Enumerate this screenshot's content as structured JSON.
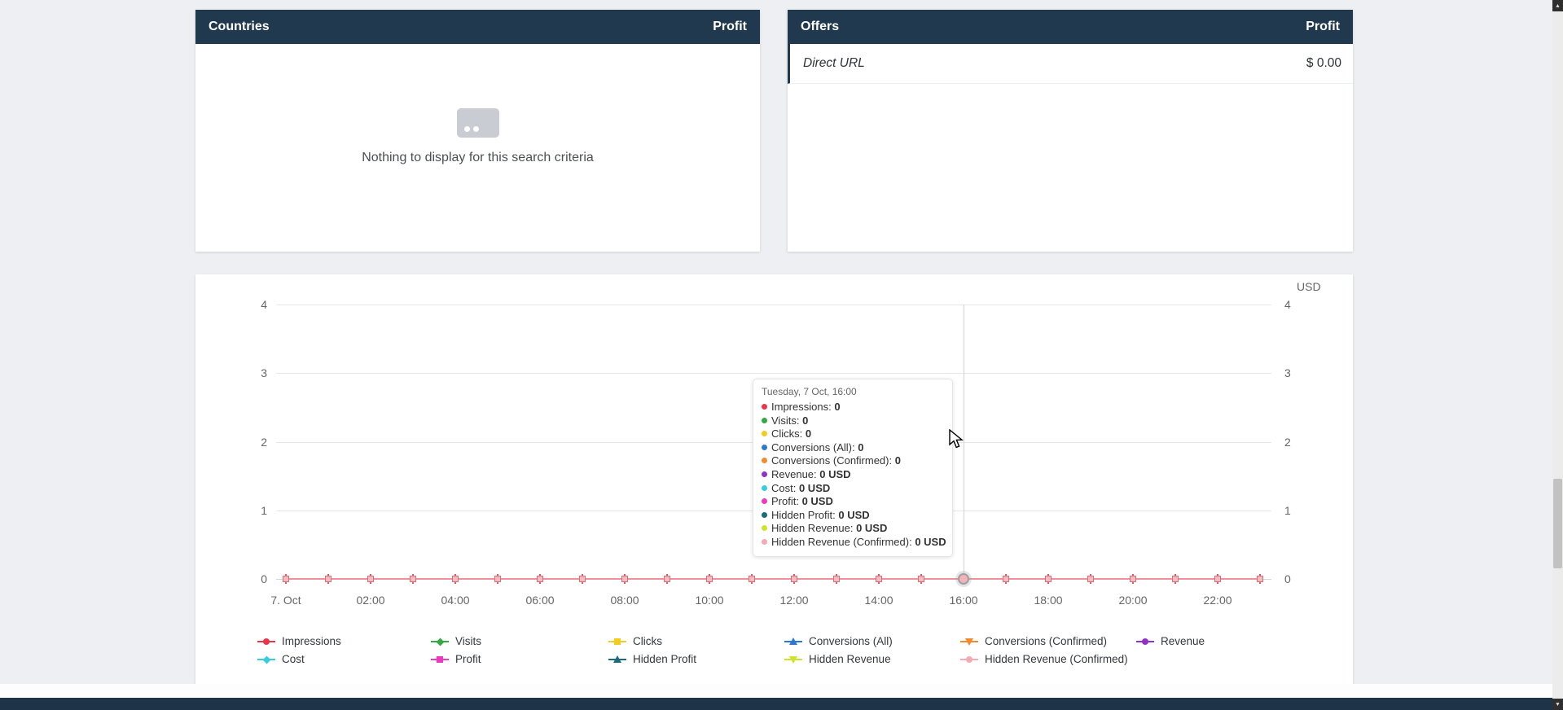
{
  "panels": {
    "countries": {
      "title": "Countries",
      "metric": "Profit",
      "empty_text": "Nothing to display for this search criteria"
    },
    "offers": {
      "title": "Offers",
      "metric": "Profit",
      "rows": [
        {
          "label": "Direct URL",
          "value": "$ 0.00"
        }
      ]
    }
  },
  "chart_data": {
    "type": "line",
    "title": "",
    "x": [
      "00:00",
      "01:00",
      "02:00",
      "03:00",
      "04:00",
      "05:00",
      "06:00",
      "07:00",
      "08:00",
      "09:00",
      "10:00",
      "11:00",
      "12:00",
      "13:00",
      "14:00",
      "15:00",
      "16:00",
      "17:00",
      "18:00",
      "19:00",
      "20:00",
      "21:00",
      "22:00",
      "23:00"
    ],
    "x_tick_labels": [
      "7. Oct",
      "02:00",
      "04:00",
      "06:00",
      "08:00",
      "10:00",
      "12:00",
      "14:00",
      "16:00",
      "18:00",
      "20:00",
      "22:00"
    ],
    "y_ticks": [
      0,
      1,
      2,
      3,
      4
    ],
    "ylim": [
      0,
      4
    ],
    "right_axis_unit": "USD",
    "grid": true,
    "legend_position": "bottom",
    "hovered_point": {
      "x": "16:00",
      "date": "Tuesday, 7 Oct"
    },
    "series": [
      {
        "name": "Impressions",
        "color": "#e8374d",
        "marker": "circle",
        "values": [
          0,
          0,
          0,
          0,
          0,
          0,
          0,
          0,
          0,
          0,
          0,
          0,
          0,
          0,
          0,
          0,
          0,
          0,
          0,
          0,
          0,
          0,
          0,
          0
        ]
      },
      {
        "name": "Visits",
        "color": "#35a843",
        "marker": "diamond",
        "values": [
          0,
          0,
          0,
          0,
          0,
          0,
          0,
          0,
          0,
          0,
          0,
          0,
          0,
          0,
          0,
          0,
          0,
          0,
          0,
          0,
          0,
          0,
          0,
          0
        ]
      },
      {
        "name": "Clicks",
        "color": "#f2cd1f",
        "marker": "square",
        "values": [
          0,
          0,
          0,
          0,
          0,
          0,
          0,
          0,
          0,
          0,
          0,
          0,
          0,
          0,
          0,
          0,
          0,
          0,
          0,
          0,
          0,
          0,
          0,
          0
        ]
      },
      {
        "name": "Conversions (All)",
        "color": "#2d78d2",
        "marker": "triangle-up",
        "values": [
          0,
          0,
          0,
          0,
          0,
          0,
          0,
          0,
          0,
          0,
          0,
          0,
          0,
          0,
          0,
          0,
          0,
          0,
          0,
          0,
          0,
          0,
          0,
          0
        ]
      },
      {
        "name": "Conversions (Confirmed)",
        "color": "#f28a2e",
        "marker": "triangle-down",
        "values": [
          0,
          0,
          0,
          0,
          0,
          0,
          0,
          0,
          0,
          0,
          0,
          0,
          0,
          0,
          0,
          0,
          0,
          0,
          0,
          0,
          0,
          0,
          0,
          0
        ]
      },
      {
        "name": "Revenue",
        "color": "#9032c9",
        "marker": "circle",
        "values": [
          0,
          0,
          0,
          0,
          0,
          0,
          0,
          0,
          0,
          0,
          0,
          0,
          0,
          0,
          0,
          0,
          0,
          0,
          0,
          0,
          0,
          0,
          0,
          0
        ]
      },
      {
        "name": "Cost",
        "color": "#37cdde",
        "marker": "diamond",
        "values": [
          0,
          0,
          0,
          0,
          0,
          0,
          0,
          0,
          0,
          0,
          0,
          0,
          0,
          0,
          0,
          0,
          0,
          0,
          0,
          0,
          0,
          0,
          0,
          0
        ]
      },
      {
        "name": "Profit",
        "color": "#ea3bc0",
        "marker": "square",
        "values": [
          0,
          0,
          0,
          0,
          0,
          0,
          0,
          0,
          0,
          0,
          0,
          0,
          0,
          0,
          0,
          0,
          0,
          0,
          0,
          0,
          0,
          0,
          0,
          0
        ]
      },
      {
        "name": "Hidden Profit",
        "color": "#1b6a7e",
        "marker": "triangle-up",
        "values": [
          0,
          0,
          0,
          0,
          0,
          0,
          0,
          0,
          0,
          0,
          0,
          0,
          0,
          0,
          0,
          0,
          0,
          0,
          0,
          0,
          0,
          0,
          0,
          0
        ]
      },
      {
        "name": "Hidden Revenue",
        "color": "#cfe22e",
        "marker": "triangle-down",
        "values": [
          0,
          0,
          0,
          0,
          0,
          0,
          0,
          0,
          0,
          0,
          0,
          0,
          0,
          0,
          0,
          0,
          0,
          0,
          0,
          0,
          0,
          0,
          0,
          0
        ]
      },
      {
        "name": "Hidden Revenue (Confirmed)",
        "color": "#f5aab1",
        "marker": "circle",
        "values": [
          0,
          0,
          0,
          0,
          0,
          0,
          0,
          0,
          0,
          0,
          0,
          0,
          0,
          0,
          0,
          0,
          0,
          0,
          0,
          0,
          0,
          0,
          0,
          0
        ]
      }
    ],
    "visible_line_color": "#f0919a"
  },
  "tooltip": {
    "title": "Tuesday, 7 Oct, 16:00",
    "rows": [
      {
        "label": "Impressions",
        "value": "0",
        "color": "#e8374d"
      },
      {
        "label": "Visits",
        "value": "0",
        "color": "#35a843"
      },
      {
        "label": "Clicks",
        "value": "0",
        "color": "#f2cd1f"
      },
      {
        "label": "Conversions (All)",
        "value": "0",
        "color": "#2d78d2"
      },
      {
        "label": "Conversions (Confirmed)",
        "value": "0",
        "color": "#f28a2e"
      },
      {
        "label": "Revenue",
        "value": "0 USD",
        "color": "#9032c9"
      },
      {
        "label": "Cost",
        "value": "0 USD",
        "color": "#37cdde"
      },
      {
        "label": "Profit",
        "value": "0 USD",
        "color": "#ea3bc0"
      },
      {
        "label": "Hidden Profit",
        "value": "0 USD",
        "color": "#1b6a7e"
      },
      {
        "label": "Hidden Revenue",
        "value": "0 USD",
        "color": "#cfe22e"
      },
      {
        "label": "Hidden Revenue (Confirmed)",
        "value": "0 USD",
        "color": "#f5aab1"
      }
    ]
  },
  "legend": {
    "rows": [
      [
        {
          "label": "Impressions",
          "color": "#e8374d",
          "shape": "circle"
        },
        {
          "label": "Visits",
          "color": "#35a843",
          "shape": "diamond"
        },
        {
          "label": "Clicks",
          "color": "#f2cd1f",
          "shape": "square"
        },
        {
          "label": "Conversions (All)",
          "color": "#2d78d2",
          "shape": "triangle-up"
        },
        {
          "label": "Conversions (Confirmed)",
          "color": "#f28a2e",
          "shape": "triangle-down"
        },
        {
          "label": "Revenue",
          "color": "#9032c9",
          "shape": "circle"
        }
      ],
      [
        {
          "label": "Cost",
          "color": "#37cdde",
          "shape": "diamond"
        },
        {
          "label": "Profit",
          "color": "#ea3bc0",
          "shape": "square"
        },
        {
          "label": "Hidden Profit",
          "color": "#1b6a7e",
          "shape": "triangle-up"
        },
        {
          "label": "Hidden Revenue",
          "color": "#cfe22e",
          "shape": "triangle-down"
        },
        {
          "label": "Hidden Revenue (Confirmed)",
          "color": "#f5aab1",
          "shape": "circle"
        }
      ]
    ]
  },
  "colors": {
    "header_bg": "#20394e",
    "footer_bg": "#1e3347",
    "page_bg": "#edeff2"
  }
}
